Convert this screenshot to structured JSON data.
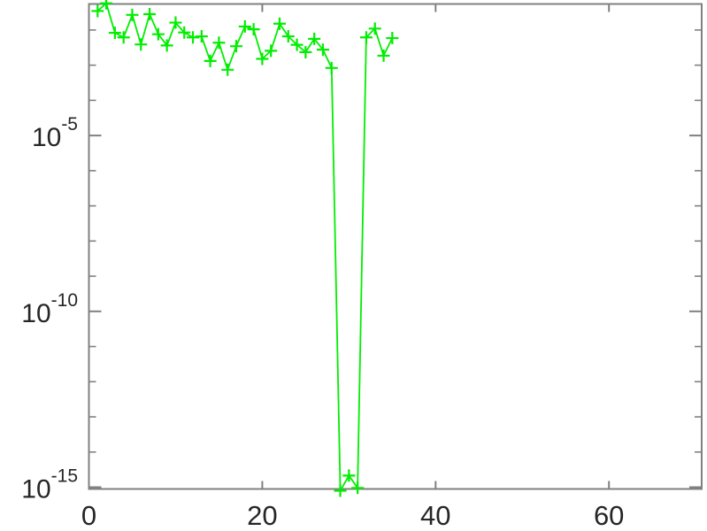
{
  "figure": {
    "background": "#ffffff",
    "axis_color": "#808080",
    "tick_label_color": "#262626",
    "series_color": "#00ee00"
  },
  "chart_data": {
    "type": "line",
    "y_scale": "log",
    "marker": "+",
    "line_color": "#00ee00",
    "grid": false,
    "title": "",
    "xlabel": "",
    "ylabel": "",
    "x": [
      1,
      2,
      3,
      4,
      5,
      6,
      7,
      8,
      9,
      10,
      11,
      12,
      13,
      14,
      15,
      16,
      17,
      18,
      19,
      20,
      21,
      22,
      23,
      24,
      25,
      26,
      27,
      28,
      29,
      30,
      31,
      32,
      33,
      34,
      35
    ],
    "y_log10": [
      -1.46,
      -1.24,
      -2.08,
      -2.21,
      -1.57,
      -2.41,
      -1.55,
      -2.12,
      -2.44,
      -1.79,
      -2.07,
      -2.21,
      -2.18,
      -2.88,
      -2.36,
      -3.13,
      -2.46,
      -1.9,
      -1.98,
      -2.82,
      -2.59,
      -1.82,
      -2.18,
      -2.42,
      -2.63,
      -2.25,
      -2.56,
      -3.08,
      -15.1,
      -14.67,
      -15.02,
      -2.21,
      -1.96,
      -2.73,
      -2.23
    ],
    "x_ticks": [
      0,
      20,
      40,
      60
    ],
    "x_tick_labels": [
      "0",
      "20",
      "40",
      "60"
    ],
    "y_major_tick_exponents": [
      -5,
      -10,
      -15
    ],
    "y_tick_label_base": "10",
    "y_minor_tick_exponents": [
      -2,
      -3,
      -4,
      -6,
      -7,
      -8,
      -9,
      -11,
      -12,
      -13,
      -14
    ],
    "xlim": [
      0,
      70.7
    ],
    "ylim_log10": [
      -15.05,
      -1.26
    ],
    "legend": null
  }
}
